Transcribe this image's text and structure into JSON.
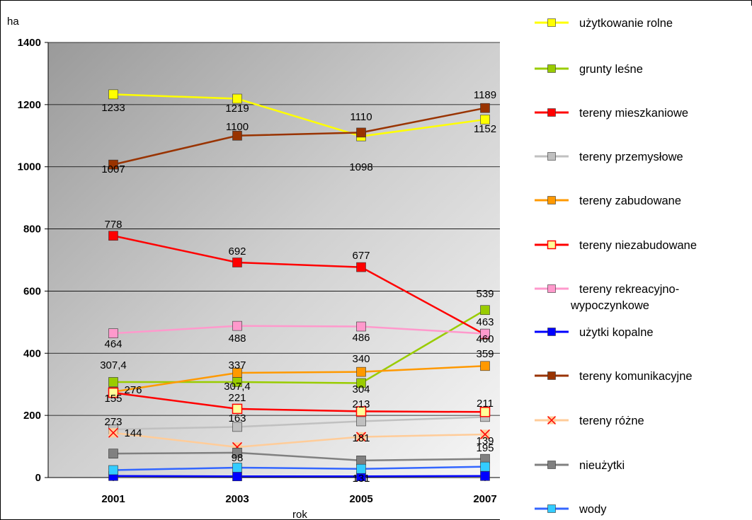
{
  "chart_data": {
    "type": "line",
    "title": "",
    "xlabel": "rok",
    "ylabel": "ha",
    "x": [
      "2001",
      "2003",
      "2005",
      "2007"
    ],
    "y_ticks": [
      "0",
      "200",
      "400",
      "600",
      "800",
      "1000",
      "1200",
      "1400"
    ],
    "ylim": [
      0,
      1400
    ],
    "grid": true,
    "legend_position": "right",
    "series": [
      {
        "name": "użytkowanie rolne",
        "color": "#FFFF00",
        "marker": "square",
        "marker_fill": "#FFFF00",
        "values": [
          1233,
          1219,
          1098,
          1152
        ],
        "labels": [
          "1233",
          "1219",
          "1098",
          "1152"
        ]
      },
      {
        "name": "grunty leśne",
        "color": "#99CC00",
        "marker": "square",
        "marker_fill": "#99CC00",
        "values": [
          307.4,
          307.4,
          304,
          539
        ],
        "labels": [
          "307,4",
          "307,4",
          "304",
          "539"
        ]
      },
      {
        "name": "tereny mieszkaniowe",
        "color": "#FF0000",
        "marker": "square",
        "marker_fill": "#FF0000",
        "values": [
          778,
          692,
          677,
          460
        ],
        "labels": [
          "778",
          "692",
          "677",
          "460"
        ]
      },
      {
        "name": "tereny przemysłowe",
        "color": "#C0C0C0",
        "marker": "square",
        "marker_fill": "#C0C0C0",
        "values": [
          155,
          163,
          181,
          195
        ],
        "labels": [
          "155",
          "163",
          "181",
          "195"
        ]
      },
      {
        "name": "tereny zabudowane",
        "color": "#FF9900",
        "marker": "square",
        "marker_fill": "#FF9900",
        "values": [
          276,
          337,
          340,
          359
        ],
        "labels": [
          "276",
          "337",
          "340",
          "359"
        ]
      },
      {
        "name": "tereny niezabudowane",
        "color": "#FF0000",
        "marker": "square-hollow",
        "marker_fill": "#FFFF99",
        "values": [
          273,
          221,
          213,
          211
        ],
        "labels": [
          "273",
          "221",
          "213",
          "211"
        ]
      },
      {
        "name": "tereny rekreacyjno-wypoczynkowe",
        "color": "#FF99CC",
        "marker": "square",
        "marker_fill": "#FF99CC",
        "values": [
          464,
          488,
          486,
          463
        ],
        "labels": [
          "464",
          "488",
          "486",
          "463"
        ]
      },
      {
        "name": "użytki kopalne",
        "color": "#0000FF",
        "marker": "square",
        "marker_fill": "#0000FF",
        "values": [
          5,
          4,
          4,
          5
        ],
        "labels": []
      },
      {
        "name": "tereny komunikacyjne",
        "color": "#993300",
        "marker": "square",
        "marker_fill": "#993300",
        "values": [
          1007,
          1100,
          1110,
          1189
        ],
        "labels": [
          "1007",
          "1100",
          "1110",
          "1189"
        ]
      },
      {
        "name": "tereny różne",
        "color": "#FFCC99",
        "marker": "x-square",
        "marker_fill": "#FFCC99",
        "values": [
          144,
          98,
          131,
          139
        ],
        "labels": [
          "144",
          "98",
          "131",
          "139"
        ]
      },
      {
        "name": "nieużytki",
        "color": "#808080",
        "marker": "square",
        "marker_fill": "#808080",
        "values": [
          77,
          80,
          55,
          60
        ],
        "labels": []
      },
      {
        "name": "wody",
        "color": "#3366FF",
        "marker": "square",
        "marker_fill": "#33CCFF",
        "values": [
          24,
          32,
          28,
          35
        ],
        "labels": []
      }
    ]
  },
  "legend_lines": {
    "rekreacyjno_line1": "tereny rekreacyjno-",
    "rekreacyjno_line2": "wypoczynkowe"
  }
}
